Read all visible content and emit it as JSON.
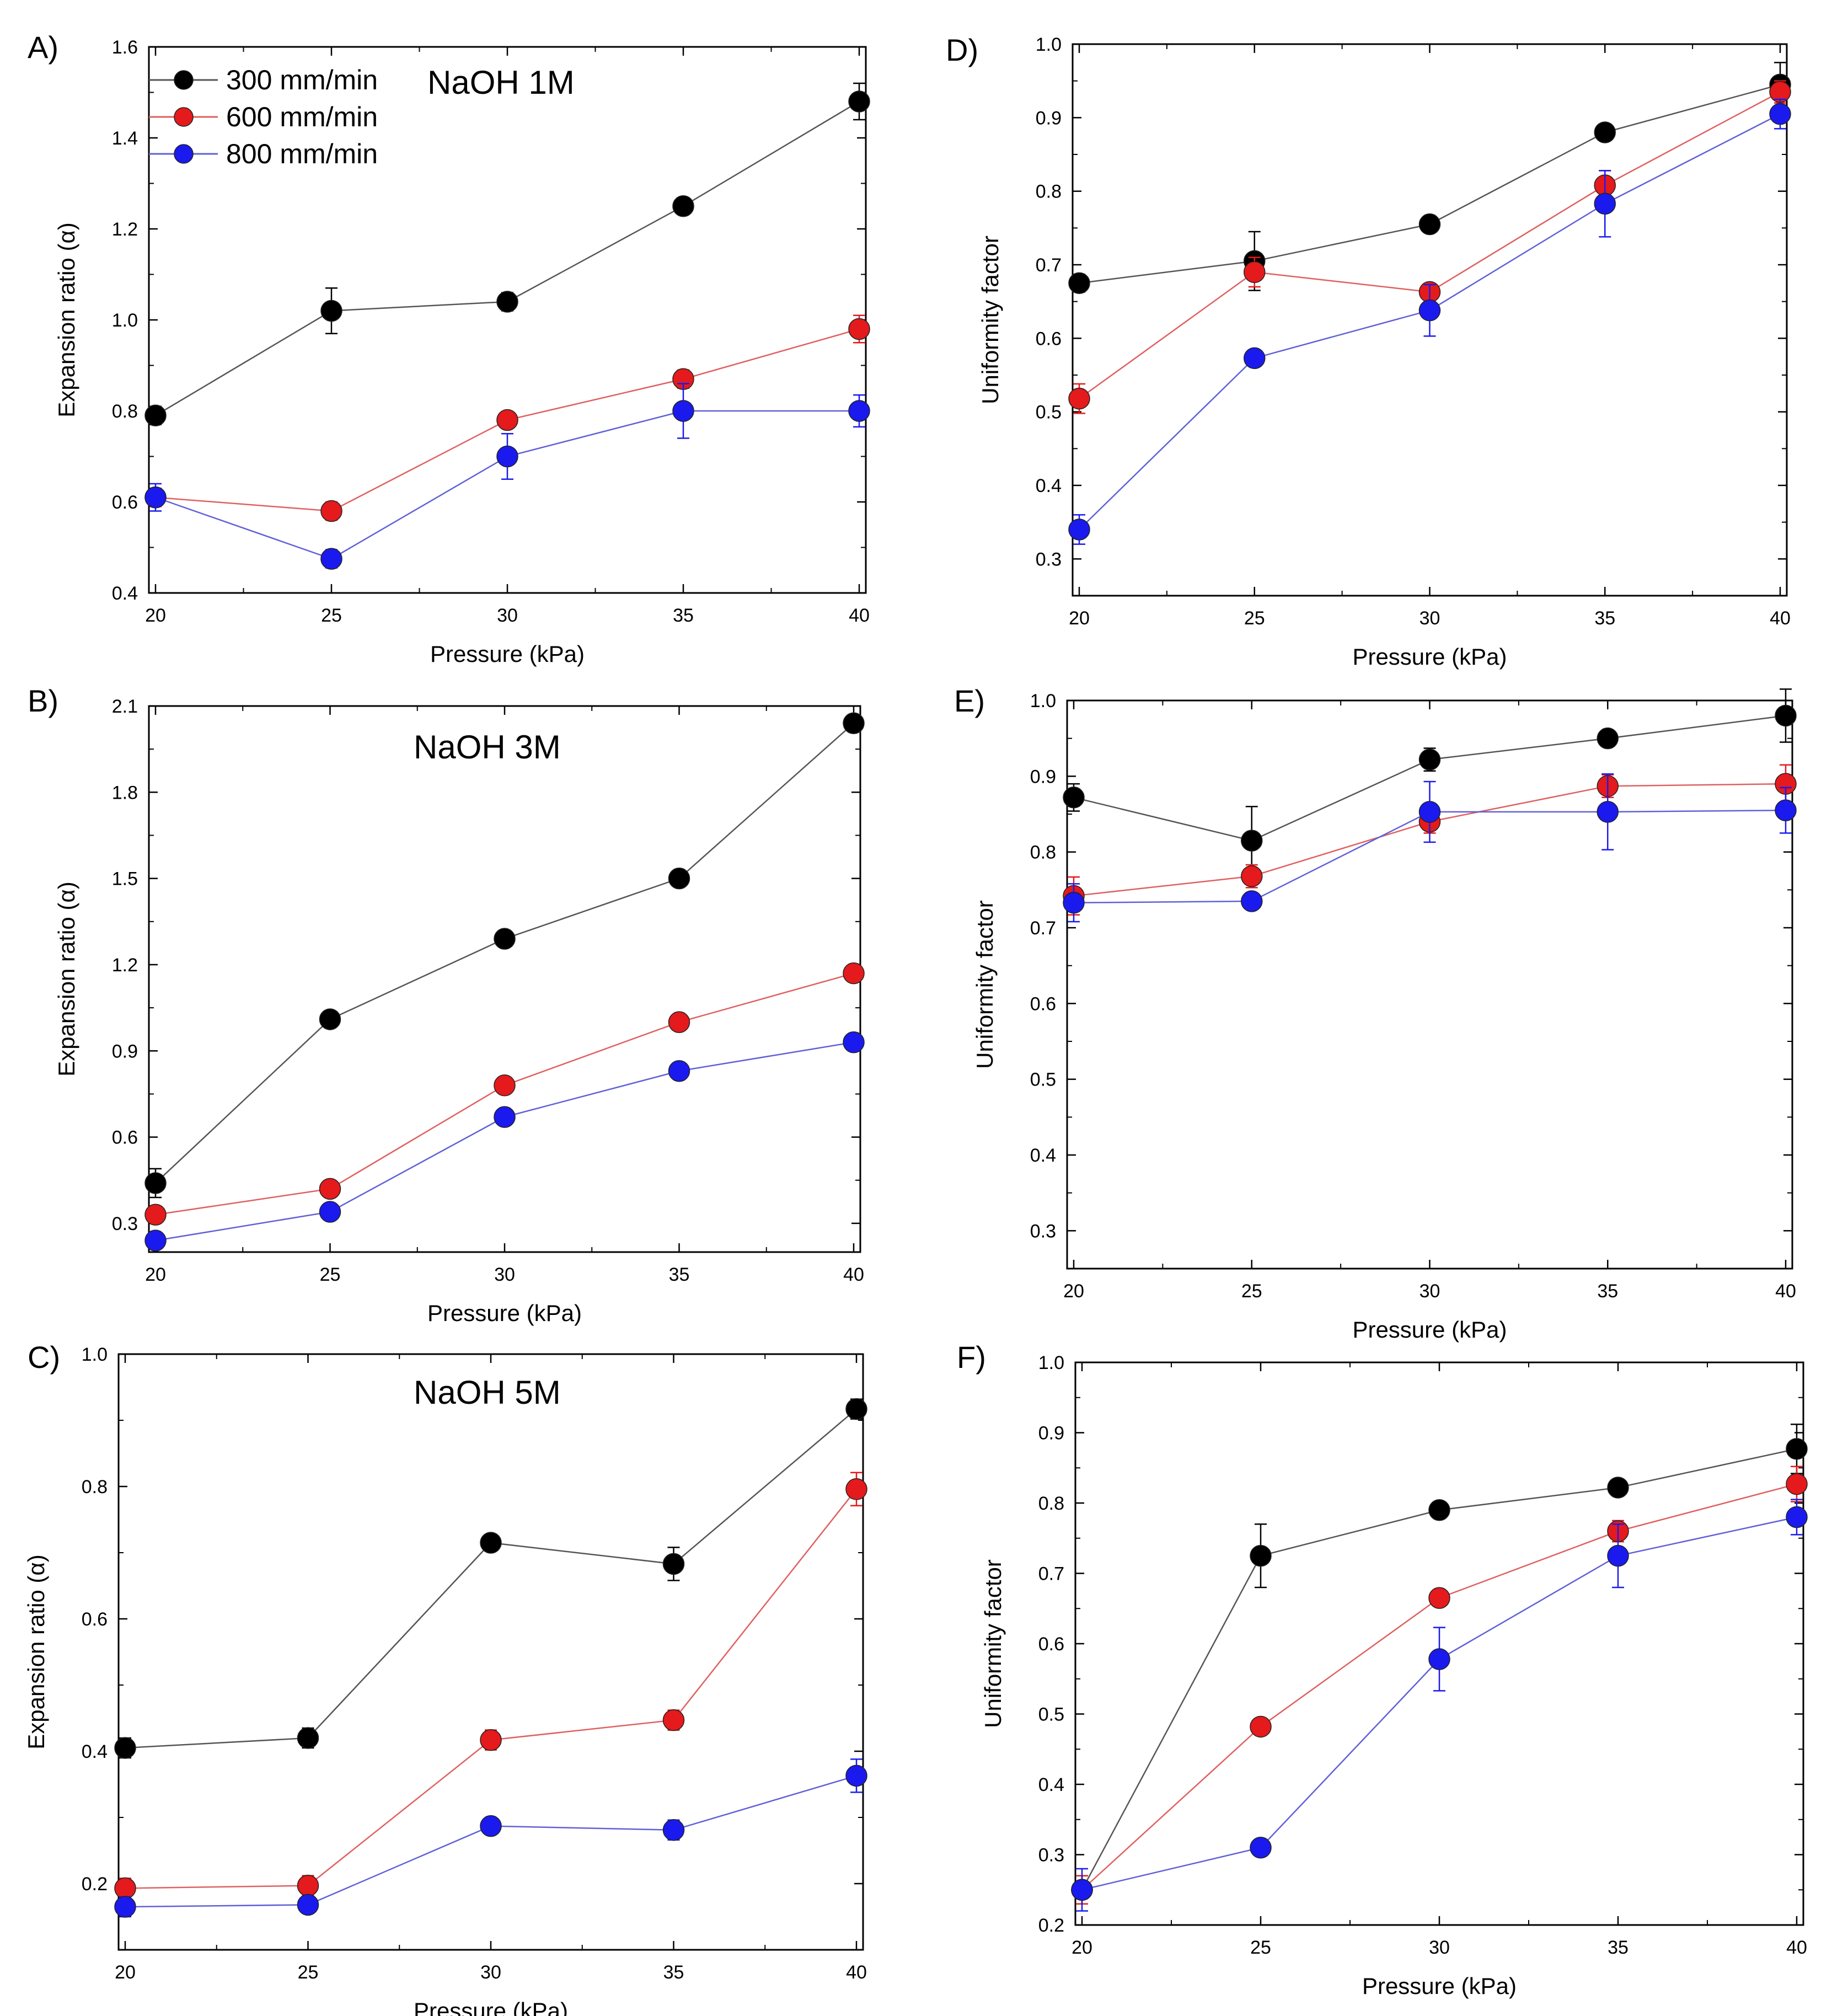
{
  "legend": [
    {
      "name": "300 mm/min",
      "color": "#000000"
    },
    {
      "name": "600 mm/min",
      "color": "#e41a1c"
    },
    {
      "name": "800 mm/min",
      "color": "#1a1aee"
    }
  ],
  "chart_data": [
    {
      "panel": "A)",
      "type": "line",
      "annotation": "NaOH 1M",
      "xlabel": "Pressure (kPa)",
      "ylabel": "Expansion ratio (α)",
      "x": [
        20,
        25,
        30,
        35,
        40
      ],
      "xlim": [
        20,
        40
      ],
      "xticks": [
        "20",
        "25",
        "30",
        "35",
        "40"
      ],
      "ylim": [
        0.4,
        1.6
      ],
      "yticks": [
        "0.4",
        "0.6",
        "0.8",
        "1.0",
        "1.2",
        "1.4",
        "1.6"
      ],
      "series": [
        {
          "name": "300 mm/min",
          "values": [
            0.79,
            1.02,
            1.04,
            1.25,
            1.48
          ],
          "errors": [
            0.02,
            0.05,
            0.02,
            0.015,
            0.04
          ]
        },
        {
          "name": "600 mm/min",
          "values": [
            0.61,
            0.58,
            0.78,
            0.87,
            0.98
          ],
          "errors": [
            0.02,
            0.02,
            0.015,
            0.02,
            0.03
          ]
        },
        {
          "name": "800 mm/min",
          "values": [
            0.61,
            0.475,
            0.7,
            0.8,
            0.8
          ],
          "errors": [
            0.03,
            0.02,
            0.05,
            0.06,
            0.035
          ]
        }
      ]
    },
    {
      "panel": "D)",
      "type": "line",
      "annotation": "",
      "xlabel": "Pressure (kPa)",
      "ylabel": "Uniformity factor",
      "x": [
        20,
        25,
        30,
        35,
        40
      ],
      "xlim": [
        20,
        40
      ],
      "xticks": [
        "20",
        "25",
        "30",
        "35",
        "40"
      ],
      "ylim": [
        0.25,
        1.0
      ],
      "yticks": [
        "0.3",
        "0.4",
        "0.5",
        "0.6",
        "0.7",
        "0.8",
        "0.9",
        "1.0"
      ],
      "series": [
        {
          "name": "300 mm/min",
          "values": [
            0.675,
            0.705,
            0.755,
            0.88,
            0.945
          ],
          "errors": [
            0.012,
            0.04,
            0.01,
            0.005,
            0.03
          ]
        },
        {
          "name": "600 mm/min",
          "values": [
            0.518,
            0.69,
            0.663,
            0.808,
            0.935
          ],
          "errors": [
            0.02,
            0.02,
            0.005,
            0.02,
            0.015
          ]
        },
        {
          "name": "800 mm/min",
          "values": [
            0.34,
            0.573,
            0.638,
            0.783,
            0.905
          ],
          "errors": [
            0.02,
            0.005,
            0.035,
            0.045,
            0.02
          ]
        }
      ]
    },
    {
      "panel": "B)",
      "type": "line",
      "annotation": "NaOH 3M",
      "xlabel": "Pressure (kPa)",
      "ylabel": "Expansion ratio (α)",
      "x": [
        20,
        25,
        30,
        35,
        40
      ],
      "xlim": [
        20,
        40
      ],
      "xticks": [
        "20",
        "25",
        "30",
        "35",
        "40"
      ],
      "ylim": [
        0.2,
        2.1
      ],
      "yticks": [
        "0.3",
        "0.6",
        "0.9",
        "1.2",
        "1.5",
        "1.8",
        "2.1"
      ],
      "series": [
        {
          "name": "300 mm/min",
          "values": [
            0.44,
            1.01,
            1.29,
            1.5,
            2.04
          ],
          "errors": [
            0.05,
            0.02,
            0.025,
            0.02,
            0.015
          ]
        },
        {
          "name": "600 mm/min",
          "values": [
            0.33,
            0.42,
            0.78,
            1.0,
            1.17
          ],
          "errors": [
            0.02,
            0.025,
            0.02,
            0.015,
            0.01
          ]
        },
        {
          "name": "800 mm/min",
          "values": [
            0.24,
            0.34,
            0.67,
            0.83,
            0.93
          ],
          "errors": [
            0.01,
            0.01,
            0.015,
            0.025,
            0.01
          ]
        }
      ]
    },
    {
      "panel": "E)",
      "type": "line",
      "annotation": "",
      "xlabel": "Pressure (kPa)",
      "ylabel": "Uniformity factor",
      "x": [
        20,
        25,
        30,
        35,
        40
      ],
      "xlim": [
        20,
        40
      ],
      "xticks": [
        "20",
        "25",
        "30",
        "35",
        "40"
      ],
      "ylim": [
        0.25,
        1.0
      ],
      "yticks": [
        "0.3",
        "0.4",
        "0.5",
        "0.6",
        "0.7",
        "0.8",
        "0.9",
        "1.0"
      ],
      "series": [
        {
          "name": "300 mm/min",
          "values": [
            0.872,
            0.815,
            0.922,
            0.95,
            0.98
          ],
          "errors": [
            0.018,
            0.045,
            0.015,
            0.01,
            0.035
          ]
        },
        {
          "name": "600 mm/min",
          "values": [
            0.742,
            0.768,
            0.84,
            0.887,
            0.89
          ],
          "errors": [
            0.025,
            0.015,
            0.015,
            0.015,
            0.025
          ]
        },
        {
          "name": "800 mm/min",
          "values": [
            0.733,
            0.735,
            0.853,
            0.853,
            0.855
          ],
          "errors": [
            0.025,
            0.005,
            0.04,
            0.05,
            0.03
          ]
        }
      ]
    },
    {
      "panel": "C)",
      "type": "line",
      "annotation": "NaOH 5M",
      "xlabel": "Pressure (kPa)",
      "ylabel": "Expansion ratio (α)",
      "x": [
        20,
        25,
        30,
        35,
        40
      ],
      "xlim": [
        20,
        40
      ],
      "xticks": [
        "20",
        "25",
        "30",
        "35",
        "40"
      ],
      "ylim": [
        0.1,
        1.0
      ],
      "yticks": [
        "0.2",
        "0.4",
        "0.6",
        "0.8",
        "1.0"
      ],
      "series": [
        {
          "name": "300 mm/min",
          "values": [
            0.405,
            0.42,
            0.715,
            0.683,
            0.917
          ],
          "errors": [
            0.015,
            0.015,
            0.005,
            0.025,
            0.015
          ]
        },
        {
          "name": "600 mm/min",
          "values": [
            0.193,
            0.197,
            0.417,
            0.447,
            0.796
          ],
          "errors": [
            0.015,
            0.015,
            0.015,
            0.015,
            0.025
          ]
        },
        {
          "name": "800 mm/min",
          "values": [
            0.165,
            0.168,
            0.287,
            0.281,
            0.363
          ],
          "errors": [
            0.015,
            0.005,
            0.005,
            0.015,
            0.025
          ]
        }
      ]
    },
    {
      "panel": "F)",
      "type": "line",
      "annotation": "",
      "xlabel": "Pressure (kPa)",
      "ylabel": "Uniformity factor",
      "x": [
        20,
        25,
        30,
        35,
        40
      ],
      "xlim": [
        20,
        40
      ],
      "xticks": [
        "20",
        "25",
        "30",
        "35",
        "40"
      ],
      "ylim": [
        0.2,
        1.0
      ],
      "yticks": [
        "0.2",
        "0.3",
        "0.4",
        "0.5",
        "0.6",
        "0.7",
        "0.8",
        "0.9",
        "1.0"
      ],
      "series": [
        {
          "name": "300 mm/min",
          "values": [
            0.25,
            0.725,
            0.79,
            0.822,
            0.877
          ],
          "errors": [
            0.02,
            0.045,
            0.01,
            0.005,
            0.035
          ]
        },
        {
          "name": "600 mm/min",
          "values": [
            0.25,
            0.482,
            0.665,
            0.76,
            0.827
          ],
          "errors": [
            0.02,
            0.01,
            0.01,
            0.015,
            0.025
          ]
        },
        {
          "name": "800 mm/min",
          "values": [
            0.25,
            0.31,
            0.578,
            0.725,
            0.78
          ],
          "errors": [
            0.03,
            0.01,
            0.045,
            0.045,
            0.025
          ]
        }
      ]
    }
  ]
}
